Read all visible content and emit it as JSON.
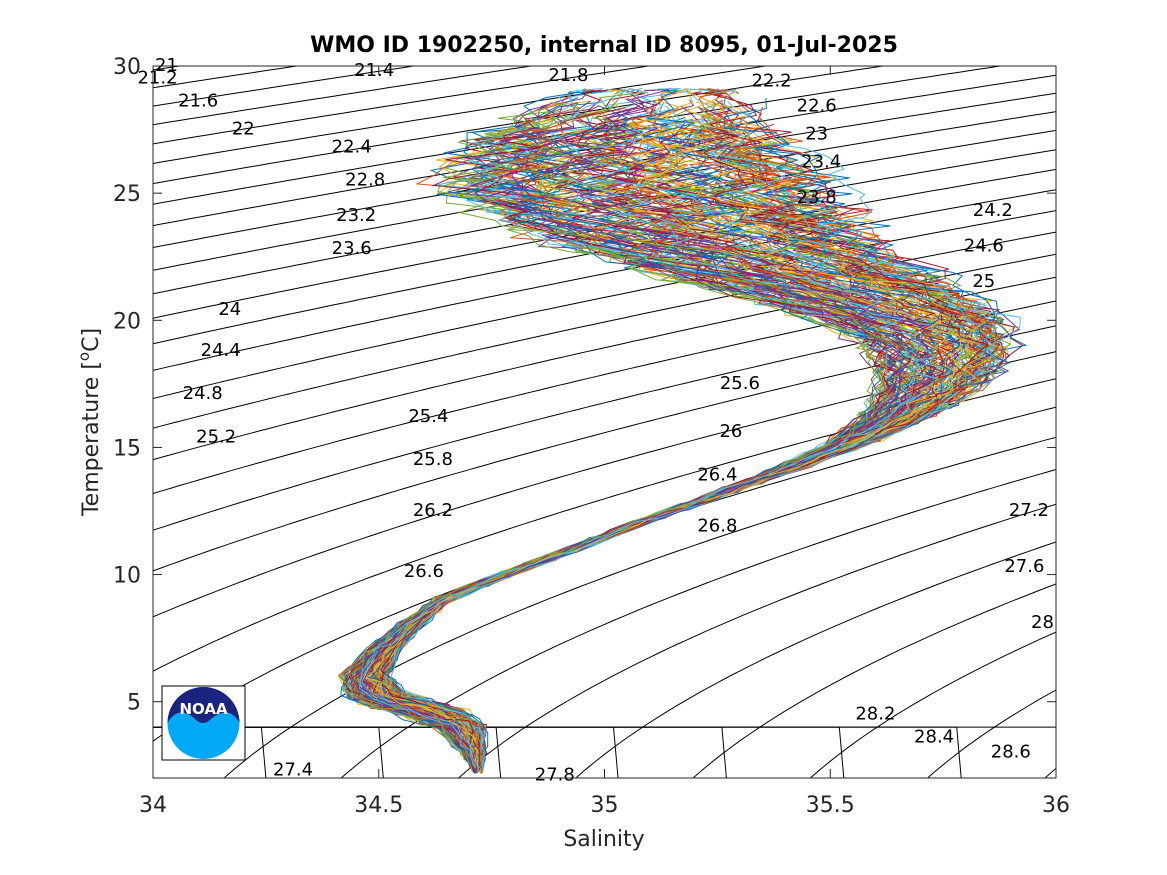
{
  "chart_data": {
    "type": "line",
    "title": "WMO ID 1902250, internal ID 8095, 01-Jul-2025",
    "xlabel": "Salinity",
    "ylabel": "Temperature [",
    "ylabel_sup": "o",
    "ylabel_suffix": "C]",
    "xlim": [
      34,
      36
    ],
    "ylim": [
      2,
      30
    ],
    "x_ticks": [
      34,
      34.5,
      35,
      35.5,
      36
    ],
    "x_tick_labels": [
      "34",
      "34.5",
      "35",
      "35.5",
      "36"
    ],
    "y_ticks": [
      5,
      10,
      15,
      20,
      25,
      30
    ],
    "y_tick_labels": [
      "5",
      "10",
      "15",
      "20",
      "25",
      "30"
    ],
    "grid": false,
    "legend": "none",
    "density_contours": {
      "levels_from": 21,
      "levels_to": 28.6,
      "levels_step": 0.2,
      "color": "#000000",
      "labels": [
        {
          "text": "21",
          "s": 34.03,
          "t": 30
        },
        {
          "text": "21.2",
          "s": 34.01,
          "t": 29.5
        },
        {
          "text": "21.4",
          "s": 34.49,
          "t": 29.8
        },
        {
          "text": "21.6",
          "s": 34.1,
          "t": 28.6
        },
        {
          "text": "21.8",
          "s": 34.92,
          "t": 29.6
        },
        {
          "text": "22",
          "s": 34.2,
          "t": 27.5
        },
        {
          "text": "22.2",
          "s": 35.37,
          "t": 29.4
        },
        {
          "text": "22.4",
          "s": 34.44,
          "t": 26.8
        },
        {
          "text": "22.6",
          "s": 35.47,
          "t": 28.4
        },
        {
          "text": "22.8",
          "s": 34.47,
          "t": 25.5
        },
        {
          "text": "23",
          "s": 35.47,
          "t": 27.3
        },
        {
          "text": "23.2",
          "s": 34.45,
          "t": 24.1
        },
        {
          "text": "23.4",
          "s": 35.48,
          "t": 26.2
        },
        {
          "text": "23.6",
          "s": 34.44,
          "t": 22.8
        },
        {
          "text": "23.8",
          "s": 35.47,
          "t": 24.8
        },
        {
          "text": "24",
          "s": 34.17,
          "t": 20.4
        },
        {
          "text": "24.2",
          "s": 35.86,
          "t": 24.3
        },
        {
          "text": "24.4",
          "s": 34.15,
          "t": 18.8
        },
        {
          "text": "24.6",
          "s": 35.84,
          "t": 22.9
        },
        {
          "text": "24.8",
          "s": 34.11,
          "t": 17.1
        },
        {
          "text": "25",
          "s": 35.84,
          "t": 21.5
        },
        {
          "text": "25.2",
          "s": 34.14,
          "t": 15.4
        },
        {
          "text": "25.4",
          "s": 34.61,
          "t": 16.2
        },
        {
          "text": "25.6",
          "s": 35.3,
          "t": 17.5
        },
        {
          "text": "25.8",
          "s": 34.62,
          "t": 14.5
        },
        {
          "text": "26",
          "s": 35.28,
          "t": 15.6
        },
        {
          "text": "26.2",
          "s": 34.62,
          "t": 12.5
        },
        {
          "text": "26.4",
          "s": 35.25,
          "t": 13.9
        },
        {
          "text": "26.6",
          "s": 34.6,
          "t": 10.1
        },
        {
          "text": "26.8",
          "s": 35.25,
          "t": 11.9
        },
        {
          "text": "27.2",
          "s": 35.94,
          "t": 12.5
        },
        {
          "text": "27.4",
          "s": 34.31,
          "t": 2.3
        },
        {
          "text": "27.6",
          "s": 35.93,
          "t": 10.3
        },
        {
          "text": "27.8",
          "s": 34.89,
          "t": 2.1
        },
        {
          "text": "28",
          "s": 35.97,
          "t": 8.1
        },
        {
          "text": "28.2",
          "s": 35.6,
          "t": 4.5
        },
        {
          "text": "28.4",
          "s": 35.73,
          "t": 3.6
        },
        {
          "text": "28.6",
          "s": 35.9,
          "t": 3.0
        }
      ]
    },
    "profile_colors": [
      "#0072BD",
      "#D95319",
      "#EDB120",
      "#7E2F8E",
      "#77AC30",
      "#4DBEEE",
      "#A2142F"
    ],
    "profile_envelope": [
      {
        "t": 2.3,
        "s": 34.72,
        "w": 0.01
      },
      {
        "t": 3.0,
        "s": 34.71,
        "w": 0.025
      },
      {
        "t": 4.0,
        "s": 34.68,
        "w": 0.05
      },
      {
        "t": 4.6,
        "s": 34.61,
        "w": 0.08
      },
      {
        "t": 5.2,
        "s": 34.5,
        "w": 0.07
      },
      {
        "t": 6.0,
        "s": 34.47,
        "w": 0.05
      },
      {
        "t": 7.0,
        "s": 34.51,
        "w": 0.035
      },
      {
        "t": 8.0,
        "s": 34.57,
        "w": 0.025
      },
      {
        "t": 9.0,
        "s": 34.64,
        "w": 0.015
      },
      {
        "t": 10.0,
        "s": 34.78,
        "w": 0.01
      },
      {
        "t": 11.0,
        "s": 34.93,
        "w": 0.01
      },
      {
        "t": 12.0,
        "s": 35.07,
        "w": 0.01
      },
      {
        "t": 13.0,
        "s": 35.23,
        "w": 0.012
      },
      {
        "t": 14.0,
        "s": 35.38,
        "w": 0.02
      },
      {
        "t": 15.0,
        "s": 35.52,
        "w": 0.04
      },
      {
        "t": 16.0,
        "s": 35.63,
        "w": 0.07
      },
      {
        "t": 17.0,
        "s": 35.7,
        "w": 0.1
      },
      {
        "t": 18.0,
        "s": 35.74,
        "w": 0.13
      },
      {
        "t": 19.0,
        "s": 35.74,
        "w": 0.16
      },
      {
        "t": 20.0,
        "s": 35.68,
        "w": 0.2
      },
      {
        "t": 21.0,
        "s": 35.55,
        "w": 0.25
      },
      {
        "t": 22.0,
        "s": 35.4,
        "w": 0.3
      },
      {
        "t": 23.0,
        "s": 35.25,
        "w": 0.34
      },
      {
        "t": 24.0,
        "s": 35.15,
        "w": 0.38
      },
      {
        "t": 25.0,
        "s": 35.08,
        "w": 0.4
      },
      {
        "t": 26.0,
        "s": 35.06,
        "w": 0.38
      },
      {
        "t": 27.0,
        "s": 35.05,
        "w": 0.33
      },
      {
        "t": 28.0,
        "s": 35.08,
        "w": 0.26
      },
      {
        "t": 29.0,
        "s": 35.12,
        "w": 0.18
      }
    ],
    "profile_count": 160
  },
  "logo": {
    "text": "NOAA",
    "colors": {
      "dark": "#1a237e",
      "light": "#03a9f4"
    }
  }
}
